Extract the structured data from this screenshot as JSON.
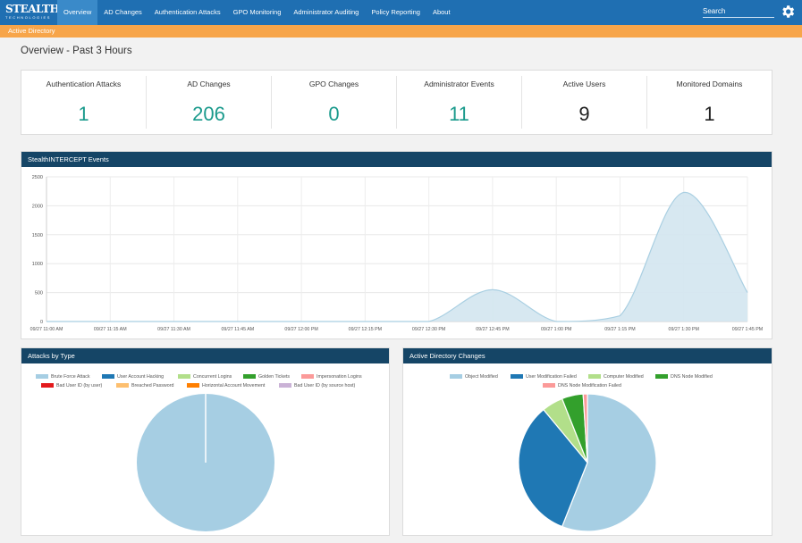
{
  "app": {
    "logo_main": "STEALTHbits",
    "logo_sub": "TECHNOLOGIES"
  },
  "nav": [
    {
      "label": "Overview",
      "active": true
    },
    {
      "label": "AD Changes"
    },
    {
      "label": "Authentication Attacks"
    },
    {
      "label": "GPO Monitoring"
    },
    {
      "label": "Administrator Auditing"
    },
    {
      "label": "Policy Reporting"
    },
    {
      "label": "About"
    }
  ],
  "search": {
    "placeholder": "Search"
  },
  "header_icons": {
    "settings": "gear-icon"
  },
  "subbar": {
    "label": "Active Directory"
  },
  "page": {
    "title": "Overview - Past 3 Hours"
  },
  "stats": [
    {
      "label": "Authentication Attacks",
      "value": "1",
      "color": "#1a9a8c"
    },
    {
      "label": "AD Changes",
      "value": "206",
      "color": "#1a9a8c"
    },
    {
      "label": "GPO Changes",
      "value": "0",
      "color": "#1a9a8c"
    },
    {
      "label": "Administrator Events",
      "value": "11",
      "color": "#1a9a8c"
    },
    {
      "label": "Active Users",
      "value": "9",
      "color": "#222222"
    },
    {
      "label": "Monitored Domains",
      "value": "1",
      "color": "#222222"
    }
  ],
  "panels": {
    "events": "StealthINTERCEPT Events",
    "attacks": "Attacks by Type",
    "ad_changes": "Active Directory Changes"
  },
  "colors": {
    "nav_bg": "#1f6fb2",
    "subbar_bg": "#f7a54a",
    "panel_head": "#154566",
    "area_fill": "#d3e6f0",
    "area_line": "#a9cfe2"
  },
  "chart_data": [
    {
      "type": "area",
      "title": "StealthINTERCEPT Events",
      "x": [
        "09/27 11:00 AM",
        "09/27 11:15 AM",
        "09/27 11:30 AM",
        "09/27 11:45 AM",
        "09/27 12:00 PM",
        "09/27 12:15 PM",
        "09/27 12:30 PM",
        "09/27 12:45 PM",
        "09/27 1:00 PM",
        "09/27 1:15 PM",
        "09/27 1:30 PM",
        "09/27 1:45 PM"
      ],
      "values": [
        0,
        0,
        0,
        0,
        0,
        0,
        0,
        550,
        0,
        100,
        2230,
        500
      ],
      "yticks": [
        0,
        500,
        1000,
        1500,
        2000,
        2500
      ],
      "ylim": [
        0,
        2500
      ],
      "grid": true
    },
    {
      "type": "pie",
      "title": "Attacks by Type",
      "legend": [
        {
          "name": "Brute Force Attack",
          "color": "#a6cee3"
        },
        {
          "name": "User Account Hacking",
          "color": "#1f78b4"
        },
        {
          "name": "Concurrent Logins",
          "color": "#b2df8a"
        },
        {
          "name": "Golden Tickets",
          "color": "#33a02c"
        },
        {
          "name": "Impersonation Logins",
          "color": "#fb9a99"
        },
        {
          "name": "Bad User ID (by user)",
          "color": "#e31a1c"
        },
        {
          "name": "Breached Password",
          "color": "#fdbf6f"
        },
        {
          "name": "Horizontal Account Movement",
          "color": "#ff7f00"
        },
        {
          "name": "Bad User ID (by source host)",
          "color": "#cab2d6"
        }
      ],
      "slices": [
        {
          "name": "Brute Force Attack",
          "value": 1,
          "color": "#a6cee3"
        }
      ]
    },
    {
      "type": "pie",
      "title": "Active Directory Changes",
      "legend": [
        {
          "name": "Object Modified",
          "color": "#a6cee3"
        },
        {
          "name": "User Modification Failed",
          "color": "#1f78b4"
        },
        {
          "name": "Computer Modified",
          "color": "#b2df8a"
        },
        {
          "name": "DNS Node Modified",
          "color": "#33a02c"
        },
        {
          "name": "DNS Node Modification Failed",
          "color": "#fb9a99"
        }
      ],
      "slices": [
        {
          "name": "Object Modified",
          "value": 56,
          "color": "#a6cee3"
        },
        {
          "name": "User Modification Failed",
          "value": 33,
          "color": "#1f78b4"
        },
        {
          "name": "Computer Modified",
          "value": 5,
          "color": "#b2df8a"
        },
        {
          "name": "DNS Node Modified",
          "value": 5,
          "color": "#33a02c"
        },
        {
          "name": "DNS Node Modification Failed",
          "value": 1,
          "color": "#fb9a99"
        }
      ]
    }
  ]
}
